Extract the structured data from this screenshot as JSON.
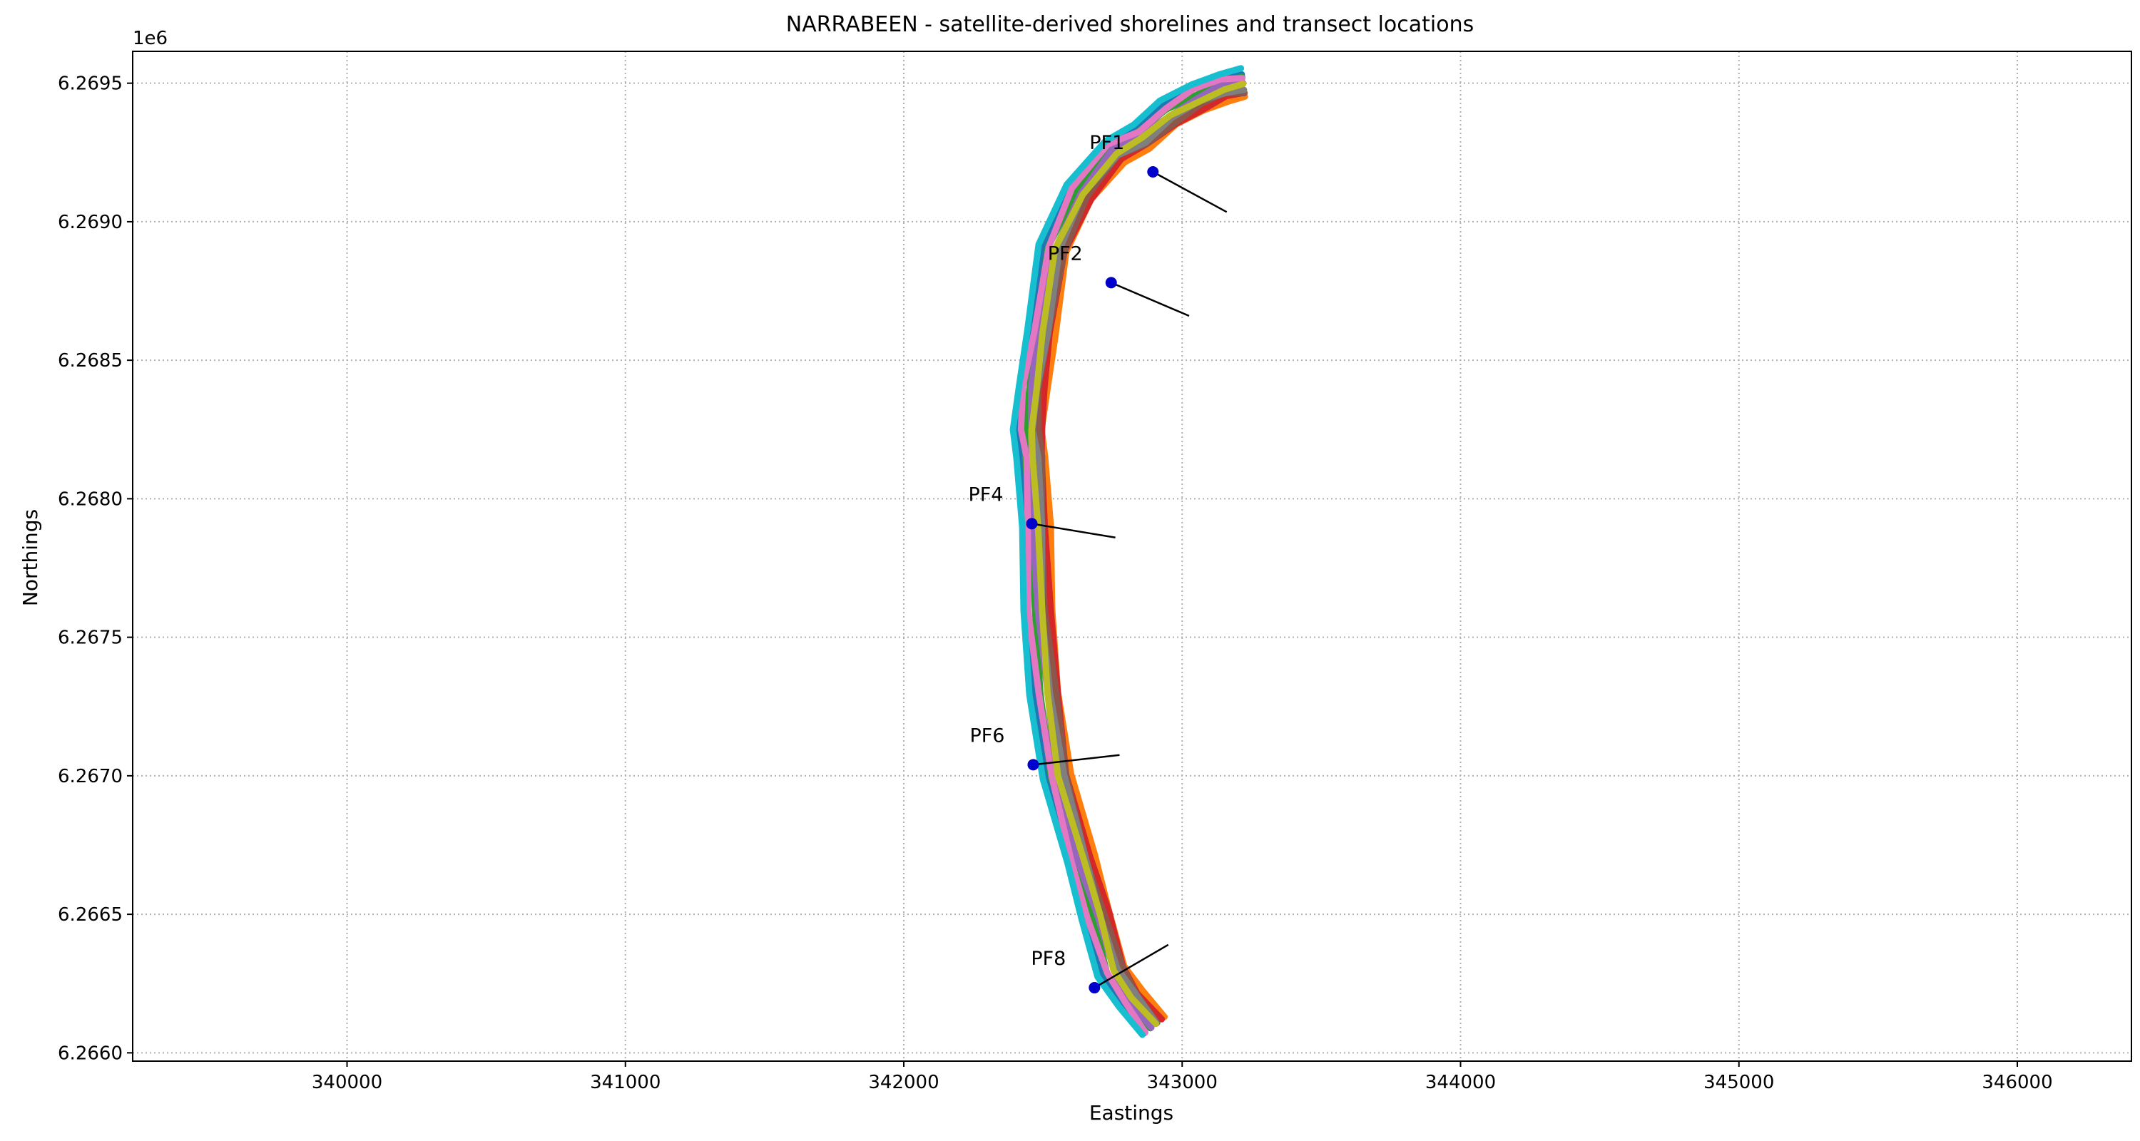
{
  "chart_data": {
    "type": "line",
    "title": "NARRABEEN - satellite-derived shorelines and transect locations",
    "xlabel": "Eastings",
    "ylabel": "Northings",
    "offset_text": "1e6",
    "xlim": [
      339230,
      346410
    ],
    "ylim": [
      6265970,
      6269615
    ],
    "y_display_scale": 1000000,
    "xticks": [
      340000,
      341000,
      342000,
      343000,
      344000,
      345000,
      346000
    ],
    "xtick_labels": [
      "340000",
      "341000",
      "342000",
      "343000",
      "344000",
      "345000",
      "346000"
    ],
    "yticks": [
      6266000,
      6266500,
      6267000,
      6267500,
      6268000,
      6268500,
      6269000,
      6269500
    ],
    "ytick_labels": [
      "6.2660",
      "6.2665",
      "6.2670",
      "6.2675",
      "6.2680",
      "6.2685",
      "6.2690",
      "6.2695"
    ],
    "grid": true,
    "shoreline_centerline": {
      "x": [
        342900,
        342820,
        342760,
        342700,
        342640,
        342560,
        342520,
        342490,
        342480,
        342470,
        342460,
        342470,
        342500,
        342550,
        342640,
        342760,
        342860,
        342960,
        343060,
        343150,
        343220
      ],
      "y": [
        6266100,
        6266200,
        6266300,
        6266500,
        6266700,
        6267000,
        6267300,
        6267600,
        6267900,
        6268150,
        6268250,
        6268400,
        6268600,
        6268900,
        6269100,
        6269250,
        6269300,
        6269380,
        6269440,
        6269480,
        6269490
      ]
    },
    "shorelines": [
      {
        "color": "#1f77b4",
        "offset": -18
      },
      {
        "color": "#ff7f0e",
        "offset": 16
      },
      {
        "color": "#2ca02c",
        "offset": -10
      },
      {
        "color": "#d62728",
        "offset": 12
      },
      {
        "color": "#9467bd",
        "offset": -4
      },
      {
        "color": "#8c564b",
        "offset": 8
      },
      {
        "color": "#e377c2",
        "offset": -14
      },
      {
        "color": "#7f7f7f",
        "offset": 4
      },
      {
        "color": "#17becf",
        "offset": -24
      },
      {
        "color": "#bcbd22",
        "offset": 0
      }
    ],
    "transects": [
      {
        "name": "PF1",
        "x0": 342895,
        "y0": 6269180,
        "x1": 343160,
        "y1": 6269035
      },
      {
        "name": "PF2",
        "x0": 342745,
        "y0": 6268780,
        "x1": 343025,
        "y1": 6268660
      },
      {
        "name": "PF4",
        "x0": 342460,
        "y0": 6267910,
        "x1": 342760,
        "y1": 6267860
      },
      {
        "name": "PF6",
        "x0": 342465,
        "y0": 6267040,
        "x1": 342775,
        "y1": 6267075
      },
      {
        "name": "PF8",
        "x0": 342685,
        "y0": 6266235,
        "x1": 342950,
        "y1": 6266390
      }
    ]
  }
}
